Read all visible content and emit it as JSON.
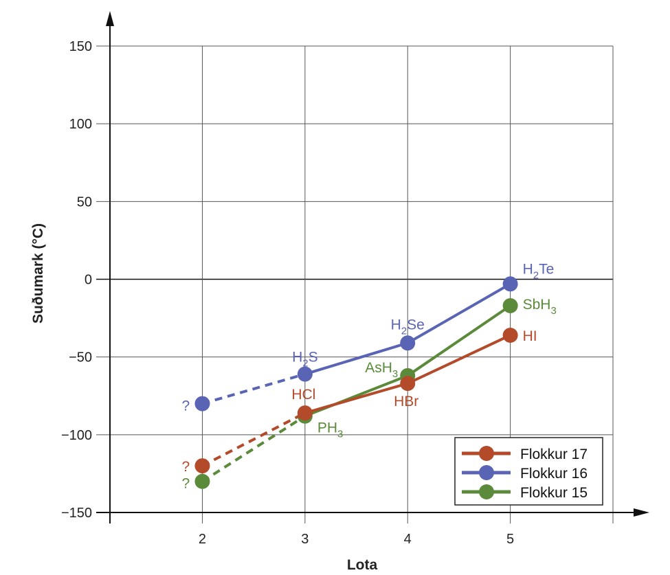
{
  "chart_data": {
    "type": "line",
    "title": "",
    "xlabel": "Lota",
    "ylabel": "Suðumark (°C)",
    "xlim": [
      1.1,
      6
    ],
    "ylim": [
      -150,
      150
    ],
    "x_ticks": [
      "2",
      "3",
      "4",
      "5"
    ],
    "y_ticks": [
      "150",
      "100",
      "50",
      "0",
      "−50",
      "−100",
      "−150"
    ],
    "grid": true,
    "legend_position": "bottom-right",
    "series": [
      {
        "name": "Flokkur 17",
        "color": "#b34a2a",
        "x": [
          2,
          3,
          4,
          5
        ],
        "y": [
          -120,
          -86,
          -67,
          -36
        ],
        "labels": [
          {
            "base": "HCl",
            "sub": "",
            "post": ""
          },
          {
            "base": "HBr",
            "sub": "",
            "post": ""
          },
          {
            "base": "HI",
            "sub": "",
            "post": ""
          }
        ],
        "unknown_label": "?"
      },
      {
        "name": "Flokkur 16",
        "color": "#5a64b4",
        "x": [
          2,
          3,
          4,
          5
        ],
        "y": [
          -80,
          -61,
          -41,
          -3
        ],
        "labels": [
          {
            "base": "H",
            "sub": "2",
            "post": "S"
          },
          {
            "base": "H",
            "sub": "2",
            "post": "Se"
          },
          {
            "base": "H",
            "sub": "2",
            "post": "Te"
          }
        ],
        "unknown_label": "?"
      },
      {
        "name": "Flokkur 15",
        "color": "#5a8a3a",
        "x": [
          2,
          3,
          4,
          5
        ],
        "y": [
          -130,
          -88,
          -62,
          -17
        ],
        "labels": [
          {
            "base": "PH",
            "sub": "3",
            "post": ""
          },
          {
            "base": "AsH",
            "sub": "3",
            "post": ""
          },
          {
            "base": "SbH",
            "sub": "3",
            "post": ""
          }
        ],
        "unknown_label": "?"
      }
    ]
  }
}
